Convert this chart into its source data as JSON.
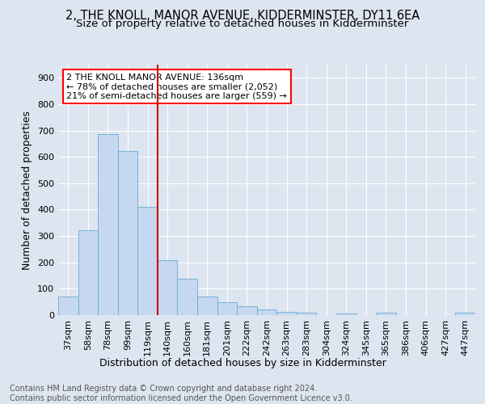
{
  "title": "2, THE KNOLL, MANOR AVENUE, KIDDERMINSTER, DY11 6EA",
  "subtitle": "Size of property relative to detached houses in Kidderminster",
  "xlabel": "Distribution of detached houses by size in Kidderminster",
  "ylabel": "Number of detached properties",
  "categories": [
    "37sqm",
    "58sqm",
    "78sqm",
    "99sqm",
    "119sqm",
    "140sqm",
    "160sqm",
    "181sqm",
    "201sqm",
    "222sqm",
    "242sqm",
    "263sqm",
    "283sqm",
    "304sqm",
    "324sqm",
    "345sqm",
    "365sqm",
    "386sqm",
    "406sqm",
    "427sqm",
    "447sqm"
  ],
  "values": [
    72,
    323,
    685,
    623,
    410,
    207,
    138,
    70,
    48,
    35,
    22,
    12,
    10,
    0,
    5,
    0,
    8,
    0,
    0,
    0,
    8
  ],
  "bar_color": "#c5d8f0",
  "bar_edge_color": "#6aaad4",
  "vline_color": "#cc0000",
  "vline_idx": 5,
  "annotation_text": "2 THE KNOLL MANOR AVENUE: 136sqm\n← 78% of detached houses are smaller (2,052)\n21% of semi-detached houses are larger (559) →",
  "ylim": [
    0,
    950
  ],
  "yticks": [
    0,
    100,
    200,
    300,
    400,
    500,
    600,
    700,
    800,
    900
  ],
  "footer": "Contains HM Land Registry data © Crown copyright and database right 2024.\nContains public sector information licensed under the Open Government Licence v3.0.",
  "background_color": "#dde5f0",
  "plot_background": "#dde5f0",
  "title_fontsize": 10.5,
  "subtitle_fontsize": 9.5,
  "axis_label_fontsize": 9,
  "tick_fontsize": 8,
  "footer_fontsize": 7
}
